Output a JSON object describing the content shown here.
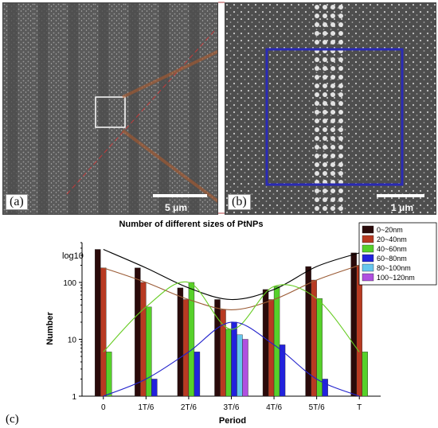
{
  "panels": {
    "a": {
      "tag": "(a)",
      "scale_label": "5 μm"
    },
    "b": {
      "tag": "(b)",
      "scale_label": "1 μm"
    },
    "c": {
      "tag": "(c)"
    }
  },
  "chart_data": {
    "type": "bar",
    "title": "Number of different sizes of PtNPs",
    "xlabel": "Period",
    "ylabel": "Number",
    "y_scale_note": "log10",
    "yscale": "log",
    "ylim": [
      1,
      500
    ],
    "y_ticks": [
      1,
      10,
      100
    ],
    "categories": [
      "0",
      "1T/6",
      "2T/6",
      "3T/6",
      "4T/6",
      "5T/6",
      "T"
    ],
    "legend_position": "top-right",
    "grid": false,
    "series": [
      {
        "name": "0~20nm",
        "color": "#2a0a0a",
        "values": [
          380,
          180,
          80,
          50,
          75,
          190,
          330
        ]
      },
      {
        "name": "20~40nm",
        "color": "#b83a22",
        "values": [
          180,
          100,
          50,
          33,
          50,
          110,
          200
        ]
      },
      {
        "name": "40~60nm",
        "color": "#56d12a",
        "values": [
          6,
          37,
          100,
          15,
          85,
          52,
          6
        ]
      },
      {
        "name": "60~80nm",
        "color": "#2222dd",
        "values": [
          0,
          2,
          6,
          20,
          8,
          2,
          0
        ]
      },
      {
        "name": "80~100nm",
        "color": "#66c6ee",
        "values": [
          0,
          0,
          0,
          12,
          0,
          0,
          0
        ]
      },
      {
        "name": "100~120nm",
        "color": "#b050e0",
        "values": [
          0,
          0,
          0,
          10,
          0,
          0,
          0
        ]
      }
    ],
    "trend_lines": [
      {
        "series": "0~20nm",
        "color": "#000000"
      },
      {
        "series": "20~40nm",
        "color": "#9a5a34"
      },
      {
        "series": "40~60nm",
        "color": "#66cc22"
      },
      {
        "series": "60~80nm",
        "color": "#2222cc"
      }
    ]
  }
}
